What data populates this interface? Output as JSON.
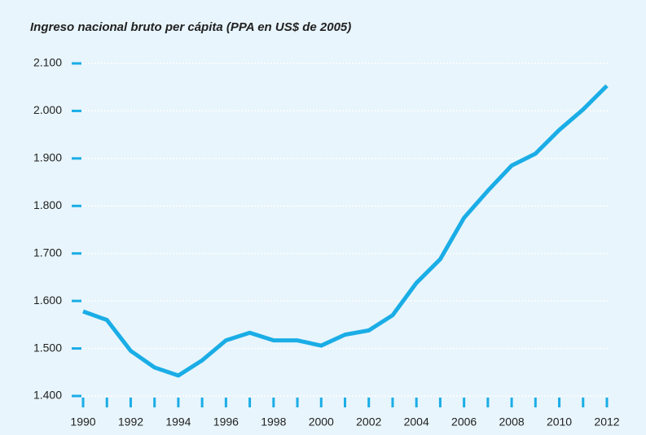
{
  "chart_data": {
    "type": "line",
    "title": "Ingreso nacional bruto per cápita (PPA en US$ de 2005)",
    "x": [
      1990,
      1991,
      1992,
      1993,
      1994,
      1995,
      1996,
      1997,
      1998,
      1999,
      2000,
      2001,
      2002,
      2003,
      2004,
      2005,
      2006,
      2007,
      2008,
      2009,
      2010,
      2011,
      2012
    ],
    "series": [
      {
        "name": "Ingreso nacional bruto per cápita",
        "color": "#1aade6",
        "values": [
          1578,
          1560,
          1495,
          1460,
          1443,
          1475,
          1517,
          1533,
          1517,
          1517,
          1506,
          1529,
          1538,
          1570,
          1638,
          1688,
          1775,
          1832,
          1885,
          1910,
          1960,
          2003,
          2053
        ]
      }
    ],
    "xlim": [
      1990,
      2012
    ],
    "xticks": [
      1990,
      1992,
      1994,
      1996,
      1998,
      2000,
      2002,
      2004,
      2006,
      2008,
      2010,
      2012
    ],
    "ylim": [
      1400,
      2100
    ],
    "yticks": [
      {
        "value": 1400,
        "label": "1.400"
      },
      {
        "value": 1500,
        "label": "1.500"
      },
      {
        "value": 1600,
        "label": "1.600"
      },
      {
        "value": 1700,
        "label": "1.700"
      },
      {
        "value": 1800,
        "label": "1.800"
      },
      {
        "value": 1900,
        "label": "1.900"
      },
      {
        "value": 2000,
        "label": "2.000"
      },
      {
        "value": 2100,
        "label": "2.100"
      }
    ],
    "grid": true
  }
}
